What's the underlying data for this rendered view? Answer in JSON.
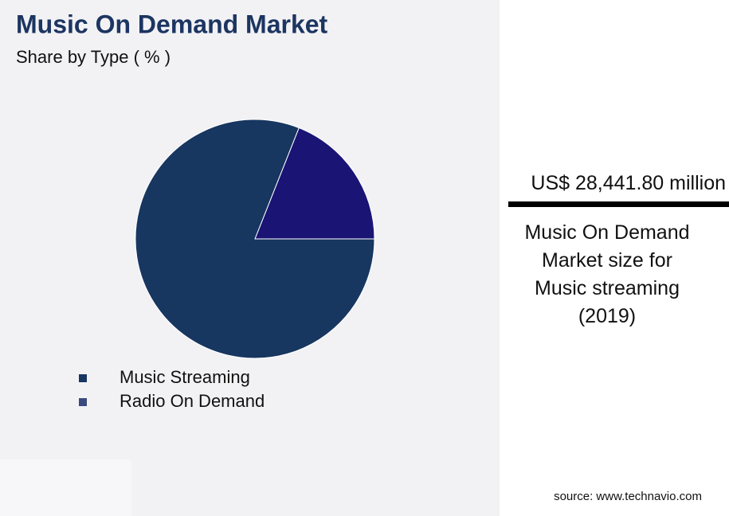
{
  "chart_data": {
    "type": "pie",
    "title": "Music On Demand Market",
    "subtitle": "Share by Type ( % )",
    "categories": [
      "Music Streaming",
      "Radio On Demand"
    ],
    "values": [
      81,
      19
    ],
    "colors": [
      "#173660",
      "#1a1475"
    ],
    "legend_colors": [
      "#173660",
      "#3a4a7e"
    ]
  },
  "panel": {
    "headline": "US$ 28,441.80 million",
    "caption": "Music On Demand Market size for Music streaming (2019)",
    "source": "source: www.technavio.com"
  }
}
